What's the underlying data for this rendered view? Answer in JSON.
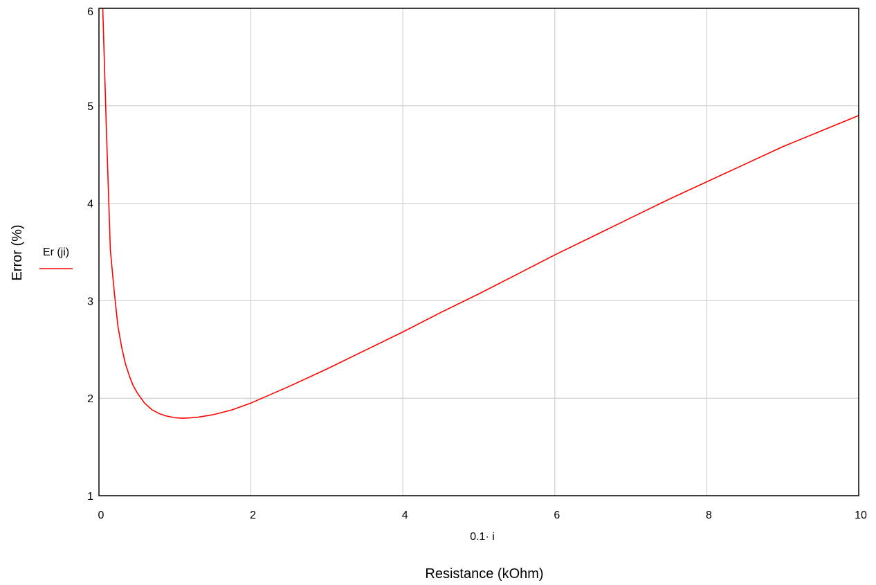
{
  "chart_data": {
    "type": "line",
    "title": "",
    "x_expression": "0.1· i",
    "xlabel": "Resistance (kOhm)",
    "ylabel": "Error (%)",
    "xlim": [
      0,
      10
    ],
    "ylim": [
      1,
      6
    ],
    "x_ticks": [
      "0",
      "2",
      "4",
      "6",
      "8",
      "10"
    ],
    "y_ticks": [
      "1",
      "2",
      "3",
      "4",
      "5",
      "6"
    ],
    "grid": true,
    "legend_position": "left",
    "series": [
      {
        "name": "Er (ji)",
        "color": "#ff0000",
        "x": [
          0.05,
          0.1,
          0.15,
          0.2,
          0.25,
          0.3,
          0.35,
          0.4,
          0.45,
          0.5,
          0.6,
          0.7,
          0.8,
          0.9,
          1.0,
          1.1,
          1.2,
          1.3,
          1.5,
          1.75,
          2.0,
          2.5,
          3.0,
          3.5,
          4.0,
          4.5,
          5.0,
          5.5,
          6.0,
          6.5,
          7.0,
          7.5,
          8.0,
          8.5,
          9.0,
          9.5,
          10.0
        ],
        "y": [
          6.0,
          4.7,
          3.52,
          3.1,
          2.74,
          2.52,
          2.35,
          2.23,
          2.13,
          2.06,
          1.95,
          1.88,
          1.84,
          1.815,
          1.8,
          1.795,
          1.798,
          1.805,
          1.83,
          1.88,
          1.95,
          2.12,
          2.3,
          2.49,
          2.68,
          2.88,
          3.07,
          3.27,
          3.47,
          3.66,
          3.85,
          4.04,
          4.22,
          4.4,
          4.58,
          4.74,
          4.9
        ]
      }
    ]
  }
}
